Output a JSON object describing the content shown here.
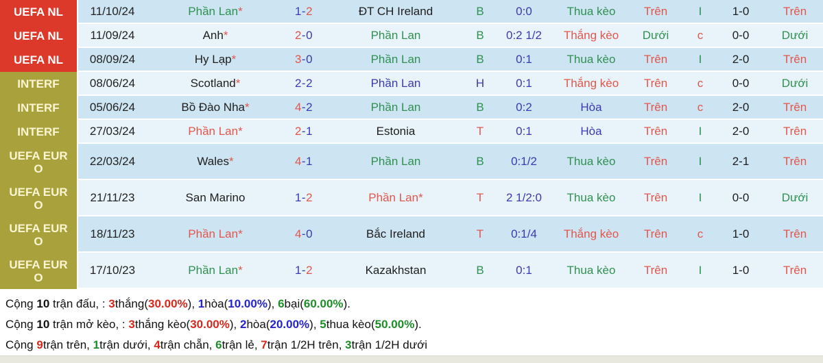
{
  "palette": {
    "competition_red_bg": "#dc392b",
    "competition_olive_bg": "#a9a23c",
    "row_stripe_dark": "#cde4f2",
    "row_stripe_light": "#e9f4fa",
    "win_red_text": "#e2564c",
    "loss_green_text": "#2f9150",
    "draw_navy_text": "#3a3ab4",
    "summary_red": "#d6281c",
    "summary_blue": "#2424cf",
    "summary_green": "#1d8e27"
  },
  "table": {
    "rows": [
      {
        "size": "normal",
        "competition": "UEFA NL",
        "competition_bg": "red",
        "date": "11/10/24",
        "home": {
          "name": "Phần Lan",
          "color": "green",
          "star": "*"
        },
        "score": {
          "h": "1",
          "hc": "navy",
          "sep": "-",
          "a": "2",
          "ac": "red"
        },
        "away": {
          "name": "ĐT CH Ireland",
          "color": "black",
          "star": ""
        },
        "letter": {
          "text": "B",
          "color": "green"
        },
        "handicap": {
          "text": "0:0",
          "color": "navy"
        },
        "keo": {
          "text": "Thua kèo",
          "color": "green"
        },
        "ou1": {
          "text": "Trên",
          "color": "red"
        },
        "parity": {
          "text": "I",
          "color": "green"
        },
        "half_score": "1-0",
        "ou2": {
          "text": "Trên",
          "color": "red"
        }
      },
      {
        "size": "normal",
        "competition": "UEFA NL",
        "competition_bg": "red",
        "date": "11/09/24",
        "home": {
          "name": "Anh",
          "color": "black",
          "star": "*"
        },
        "score": {
          "h": "2",
          "hc": "red",
          "sep": "-",
          "a": "0",
          "ac": "navy"
        },
        "away": {
          "name": "Phần Lan",
          "color": "green",
          "star": ""
        },
        "letter": {
          "text": "B",
          "color": "green"
        },
        "handicap": {
          "text": "0:2 1/2",
          "color": "navy"
        },
        "keo": {
          "text": "Thắng kèo",
          "color": "red"
        },
        "ou1": {
          "text": "Dưới",
          "color": "green"
        },
        "parity": {
          "text": "c",
          "color": "red"
        },
        "half_score": "0-0",
        "ou2": {
          "text": "Dưới",
          "color": "green"
        }
      },
      {
        "size": "normal",
        "competition": "UEFA NL",
        "competition_bg": "red",
        "date": "08/09/24",
        "home": {
          "name": "Hy Lạp",
          "color": "black",
          "star": "*"
        },
        "score": {
          "h": "3",
          "hc": "red",
          "sep": "-",
          "a": "0",
          "ac": "navy"
        },
        "away": {
          "name": "Phần Lan",
          "color": "green",
          "star": ""
        },
        "letter": {
          "text": "B",
          "color": "green"
        },
        "handicap": {
          "text": "0:1",
          "color": "navy"
        },
        "keo": {
          "text": "Thua kèo",
          "color": "green"
        },
        "ou1": {
          "text": "Trên",
          "color": "red"
        },
        "parity": {
          "text": "I",
          "color": "green"
        },
        "half_score": "2-0",
        "ou2": {
          "text": "Trên",
          "color": "red"
        }
      },
      {
        "size": "normal",
        "competition": "INTERF",
        "competition_bg": "olive",
        "date": "08/06/24",
        "home": {
          "name": "Scotland",
          "color": "black",
          "star": "*"
        },
        "score": {
          "h": "2",
          "hc": "navy",
          "sep": "-",
          "a": "2",
          "ac": "navy"
        },
        "away": {
          "name": "Phần Lan",
          "color": "navy",
          "star": ""
        },
        "letter": {
          "text": "H",
          "color": "navy"
        },
        "handicap": {
          "text": "0:1",
          "color": "navy"
        },
        "keo": {
          "text": "Thắng kèo",
          "color": "red"
        },
        "ou1": {
          "text": "Trên",
          "color": "red"
        },
        "parity": {
          "text": "c",
          "color": "red"
        },
        "half_score": "0-0",
        "ou2": {
          "text": "Dưới",
          "color": "green"
        }
      },
      {
        "size": "normal",
        "competition": "INTERF",
        "competition_bg": "olive",
        "date": "05/06/24",
        "home": {
          "name": "Bồ Đào Nha",
          "color": "black",
          "star": "*"
        },
        "score": {
          "h": "4",
          "hc": "red",
          "sep": "-",
          "a": "2",
          "ac": "navy"
        },
        "away": {
          "name": "Phần Lan",
          "color": "green",
          "star": ""
        },
        "letter": {
          "text": "B",
          "color": "green"
        },
        "handicap": {
          "text": "0:2",
          "color": "navy"
        },
        "keo": {
          "text": "Hòa",
          "color": "navy"
        },
        "ou1": {
          "text": "Trên",
          "color": "red"
        },
        "parity": {
          "text": "c",
          "color": "red"
        },
        "half_score": "2-0",
        "ou2": {
          "text": "Trên",
          "color": "red"
        }
      },
      {
        "size": "normal",
        "competition": "INTERF",
        "competition_bg": "olive",
        "date": "27/03/24",
        "home": {
          "name": "Phần Lan",
          "color": "red",
          "star": "*"
        },
        "score": {
          "h": "2",
          "hc": "red",
          "sep": "-",
          "a": "1",
          "ac": "navy"
        },
        "away": {
          "name": "Estonia",
          "color": "black",
          "star": ""
        },
        "letter": {
          "text": "T",
          "color": "red"
        },
        "handicap": {
          "text": "0:1",
          "color": "navy"
        },
        "keo": {
          "text": "Hòa",
          "color": "navy"
        },
        "ou1": {
          "text": "Trên",
          "color": "red"
        },
        "parity": {
          "text": "I",
          "color": "green"
        },
        "half_score": "2-0",
        "ou2": {
          "text": "Trên",
          "color": "red"
        }
      },
      {
        "size": "tall",
        "competition": "UEFA EURO",
        "competition_bg": "olive",
        "date": "22/03/24",
        "home": {
          "name": "Wales",
          "color": "black",
          "star": "*"
        },
        "score": {
          "h": "4",
          "hc": "red",
          "sep": "-",
          "a": "1",
          "ac": "navy"
        },
        "away": {
          "name": "Phần Lan",
          "color": "green",
          "star": ""
        },
        "letter": {
          "text": "B",
          "color": "green"
        },
        "handicap": {
          "text": "0:1/2",
          "color": "navy"
        },
        "keo": {
          "text": "Thua kèo",
          "color": "green"
        },
        "ou1": {
          "text": "Trên",
          "color": "red"
        },
        "parity": {
          "text": "I",
          "color": "green"
        },
        "half_score": "2-1",
        "ou2": {
          "text": "Trên",
          "color": "red"
        }
      },
      {
        "size": "tall",
        "competition": "UEFA EURO",
        "competition_bg": "olive",
        "date": "21/11/23",
        "home": {
          "name": "San Marino",
          "color": "black",
          "star": ""
        },
        "score": {
          "h": "1",
          "hc": "navy",
          "sep": "-",
          "a": "2",
          "ac": "red"
        },
        "away": {
          "name": "Phần Lan",
          "color": "red",
          "star": "*"
        },
        "letter": {
          "text": "T",
          "color": "red"
        },
        "handicap": {
          "text": "2 1/2:0",
          "color": "navy"
        },
        "keo": {
          "text": "Thua kèo",
          "color": "green"
        },
        "ou1": {
          "text": "Trên",
          "color": "red"
        },
        "parity": {
          "text": "I",
          "color": "green"
        },
        "half_score": "0-0",
        "ou2": {
          "text": "Dưới",
          "color": "green"
        }
      },
      {
        "size": "tall",
        "competition": "UEFA EURO",
        "competition_bg": "olive",
        "date": "18/11/23",
        "home": {
          "name": "Phần Lan",
          "color": "red",
          "star": "*"
        },
        "score": {
          "h": "4",
          "hc": "red",
          "sep": "-",
          "a": "0",
          "ac": "navy"
        },
        "away": {
          "name": "Bắc Ireland",
          "color": "black",
          "star": ""
        },
        "letter": {
          "text": "T",
          "color": "red"
        },
        "handicap": {
          "text": "0:1/4",
          "color": "navy"
        },
        "keo": {
          "text": "Thắng kèo",
          "color": "red"
        },
        "ou1": {
          "text": "Trên",
          "color": "red"
        },
        "parity": {
          "text": "c",
          "color": "red"
        },
        "half_score": "1-0",
        "ou2": {
          "text": "Trên",
          "color": "red"
        }
      },
      {
        "size": "tall",
        "competition": "UEFA EURO",
        "competition_bg": "olive",
        "date": "17/10/23",
        "home": {
          "name": "Phần Lan",
          "color": "green",
          "star": "*"
        },
        "score": {
          "h": "1",
          "hc": "navy",
          "sep": "-",
          "a": "2",
          "ac": "red"
        },
        "away": {
          "name": "Kazakhstan",
          "color": "black",
          "star": ""
        },
        "letter": {
          "text": "B",
          "color": "green"
        },
        "handicap": {
          "text": "0:1",
          "color": "navy"
        },
        "keo": {
          "text": "Thua kèo",
          "color": "green"
        },
        "ou1": {
          "text": "Trên",
          "color": "red"
        },
        "parity": {
          "text": "I",
          "color": "green"
        },
        "half_score": "1-0",
        "ou2": {
          "text": "Trên",
          "color": "red"
        }
      }
    ]
  },
  "summary": {
    "lines": [
      [
        {
          "t": "Cộng ",
          "c": "k"
        },
        {
          "t": "10",
          "c": "k",
          "b": 1
        },
        {
          "t": " trận đấu, : ",
          "c": "k"
        },
        {
          "t": "3",
          "c": "sr",
          "b": 1
        },
        {
          "t": "thắng",
          "c": "k"
        },
        {
          "t": "(",
          "c": "k"
        },
        {
          "t": "30.00%",
          "c": "sr",
          "b": 1
        },
        {
          "t": "), ",
          "c": "k"
        },
        {
          "t": "1",
          "c": "sb",
          "b": 1
        },
        {
          "t": "hòa",
          "c": "k"
        },
        {
          "t": "(",
          "c": "k"
        },
        {
          "t": "10.00%",
          "c": "sb",
          "b": 1
        },
        {
          "t": "), ",
          "c": "k"
        },
        {
          "t": "6",
          "c": "sg",
          "b": 1
        },
        {
          "t": "bại",
          "c": "k"
        },
        {
          "t": "(",
          "c": "k"
        },
        {
          "t": "60.00%",
          "c": "sg",
          "b": 1
        },
        {
          "t": ").",
          "c": "k"
        }
      ],
      [
        {
          "t": "Cộng ",
          "c": "k"
        },
        {
          "t": "10",
          "c": "k",
          "b": 1
        },
        {
          "t": " trận mở kèo, : ",
          "c": "k"
        },
        {
          "t": "3",
          "c": "sr",
          "b": 1
        },
        {
          "t": "thắng kèo",
          "c": "k"
        },
        {
          "t": "(",
          "c": "k"
        },
        {
          "t": "30.00%",
          "c": "sr",
          "b": 1
        },
        {
          "t": "), ",
          "c": "k"
        },
        {
          "t": "2",
          "c": "sb",
          "b": 1
        },
        {
          "t": "hòa",
          "c": "k"
        },
        {
          "t": "(",
          "c": "k"
        },
        {
          "t": "20.00%",
          "c": "sb",
          "b": 1
        },
        {
          "t": "), ",
          "c": "k"
        },
        {
          "t": "5",
          "c": "sg",
          "b": 1
        },
        {
          "t": "thua kèo",
          "c": "k"
        },
        {
          "t": "(",
          "c": "k"
        },
        {
          "t": "50.00%",
          "c": "sg",
          "b": 1
        },
        {
          "t": ").",
          "c": "k"
        }
      ],
      [
        {
          "t": "Cộng ",
          "c": "k"
        },
        {
          "t": "9",
          "c": "sr",
          "b": 1
        },
        {
          "t": "trận trên, ",
          "c": "k"
        },
        {
          "t": "1",
          "c": "sg",
          "b": 1
        },
        {
          "t": "trận dưới, ",
          "c": "k"
        },
        {
          "t": "4",
          "c": "sr",
          "b": 1
        },
        {
          "t": "trận chẵn, ",
          "c": "k"
        },
        {
          "t": "6",
          "c": "sg",
          "b": 1
        },
        {
          "t": "trận lẻ, ",
          "c": "k"
        },
        {
          "t": "7",
          "c": "sr",
          "b": 1
        },
        {
          "t": "trận 1/2H trên, ",
          "c": "k"
        },
        {
          "t": "3",
          "c": "sg",
          "b": 1
        },
        {
          "t": "trận 1/2H dưới",
          "c": "k"
        }
      ]
    ]
  }
}
